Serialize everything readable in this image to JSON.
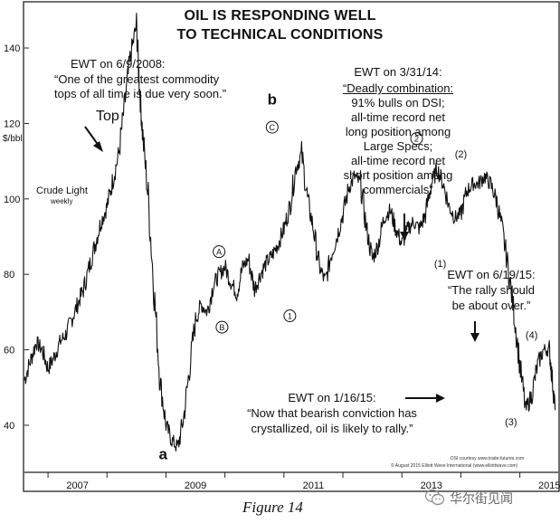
{
  "chart_data": {
    "type": "line",
    "title_line1": "OIL IS RESPONDING WELL",
    "title_line2": "TO TECHNICAL CONDITIONS",
    "ylabel": "$/bbl.",
    "series_label": "Crude Light",
    "series_sublabel": "weekly",
    "ylim": [
      28,
      152
    ],
    "xlim": [
      2006.6,
      2015.65
    ],
    "y_ticks": [
      {
        "value": 140,
        "label": "140"
      },
      {
        "value": 120,
        "label": "120"
      },
      {
        "value": 100,
        "label": "100"
      },
      {
        "value": 80,
        "label": "80"
      },
      {
        "value": 60,
        "label": "60"
      },
      {
        "value": 40,
        "label": "40"
      }
    ],
    "x_ticks": [
      {
        "value": 2007,
        "label": "2007"
      },
      {
        "value": 2009,
        "label": "2009"
      },
      {
        "value": 2011,
        "label": "2011"
      },
      {
        "value": 2013,
        "label": "2013"
      },
      {
        "value": 2015,
        "label": "2015"
      }
    ],
    "x": [
      2006.6,
      2006.7,
      2006.8,
      2006.9,
      2007.0,
      2007.1,
      2007.2,
      2007.3,
      2007.4,
      2007.5,
      2007.6,
      2007.7,
      2007.8,
      2007.9,
      2008.0,
      2008.1,
      2008.2,
      2008.3,
      2008.4,
      2008.5,
      2008.55,
      2008.6,
      2008.7,
      2008.8,
      2008.9,
      2009.0,
      2009.1,
      2009.2,
      2009.3,
      2009.4,
      2009.5,
      2009.6,
      2009.7,
      2009.8,
      2009.9,
      2010.0,
      2010.1,
      2010.2,
      2010.3,
      2010.4,
      2010.5,
      2010.6,
      2010.7,
      2010.8,
      2010.9,
      2011.0,
      2011.1,
      2011.2,
      2011.3,
      2011.4,
      2011.5,
      2011.6,
      2011.7,
      2011.8,
      2011.9,
      2012.0,
      2012.1,
      2012.2,
      2012.3,
      2012.4,
      2012.5,
      2012.6,
      2012.7,
      2012.8,
      2012.9,
      2013.0,
      2013.1,
      2013.2,
      2013.3,
      2013.4,
      2013.5,
      2013.6,
      2013.7,
      2013.8,
      2013.9,
      2014.0,
      2014.1,
      2014.2,
      2014.3,
      2014.4,
      2014.5,
      2014.6,
      2014.7,
      2014.8,
      2014.9,
      2015.0,
      2015.1,
      2015.2,
      2015.3,
      2015.4,
      2015.5,
      2015.55,
      2015.6
    ],
    "values": [
      52,
      57,
      62,
      60,
      55,
      58,
      62,
      64,
      68,
      72,
      76,
      82,
      88,
      94,
      98,
      105,
      112,
      125,
      138,
      146,
      130,
      118,
      100,
      75,
      52,
      40,
      36,
      34,
      42,
      55,
      68,
      72,
      70,
      77,
      80,
      82,
      78,
      75,
      82,
      84,
      76,
      80,
      83,
      85,
      88,
      92,
      98,
      108,
      112,
      100,
      92,
      82,
      78,
      85,
      90,
      96,
      103,
      106,
      104,
      92,
      84,
      88,
      95,
      97,
      92,
      88,
      92,
      94,
      92,
      96,
      104,
      108,
      104,
      98,
      95,
      96,
      102,
      104,
      104,
      106,
      104,
      100,
      92,
      82,
      70,
      56,
      44,
      48,
      56,
      60,
      60,
      52,
      44
    ],
    "waves": [
      {
        "label": "A",
        "circled": true,
        "x": 2009.9,
        "y": 86
      },
      {
        "label": "B",
        "circled": true,
        "x": 2009.95,
        "y": 66
      },
      {
        "label": "C",
        "circled": true,
        "x": 2010.8,
        "y": 119
      },
      {
        "label": "1",
        "circled": true,
        "x": 2011.1,
        "y": 69
      },
      {
        "label": "2",
        "circled": true,
        "x": 2013.25,
        "y": 116
      },
      {
        "label": "(1)",
        "circled": false,
        "x": 2013.65,
        "y": 82
      },
      {
        "label": "(2)",
        "circled": false,
        "x": 2014.0,
        "y": 111
      },
      {
        "label": "(3)",
        "circled": false,
        "x": 2014.85,
        "y": 40
      },
      {
        "label": "(4)",
        "circled": false,
        "x": 2015.2,
        "y": 63
      },
      {
        "label": "a",
        "circled": false,
        "big": true,
        "x": 2008.95,
        "y": 31
      },
      {
        "label": "b",
        "circled": false,
        "big": true,
        "x": 2010.8,
        "y": 125
      }
    ],
    "annotations": {
      "top_label": "Top",
      "ewt_2008_date": "EWT on 6/9/2008:",
      "ewt_2008_quote1": "“One of the greatest commodity",
      "ewt_2008_quote2": "tops of all time is due very soon.”",
      "ewt_2014_date": "EWT on 3/31/14:",
      "ewt_2014_line1": "“Deadly combination:",
      "ewt_2014_line2": "91% bulls on DSI;",
      "ewt_2014_line3": "all-time record net",
      "ewt_2014_line4": "long position among",
      "ewt_2014_line5": "Large Specs;",
      "ewt_2014_line6": "all-time record net",
      "ewt_2014_line7": "short position among",
      "ewt_2014_line8": "commercials”",
      "ewt_2015a_date": "EWT on 6/19/15:",
      "ewt_2015a_line1": "“The rally should",
      "ewt_2015a_line2": "be about over.”",
      "ewt_2015b_date": "EWT on 1/16/15:",
      "ewt_2015b_line1": "“Now that bearish conviction has",
      "ewt_2015b_line2": "crystallized, oil is likely to rally.”",
      "credit1": "DSI courtesy www.trade-futures.com",
      "credit2": "© August 2015 Elliott Wave International (www.elliottwave.com)"
    }
  },
  "caption": "Figure 14",
  "watermark": "华尔街见闻",
  "colors": {
    "line": "#111111",
    "frame": "#222222",
    "text": "#111111"
  }
}
